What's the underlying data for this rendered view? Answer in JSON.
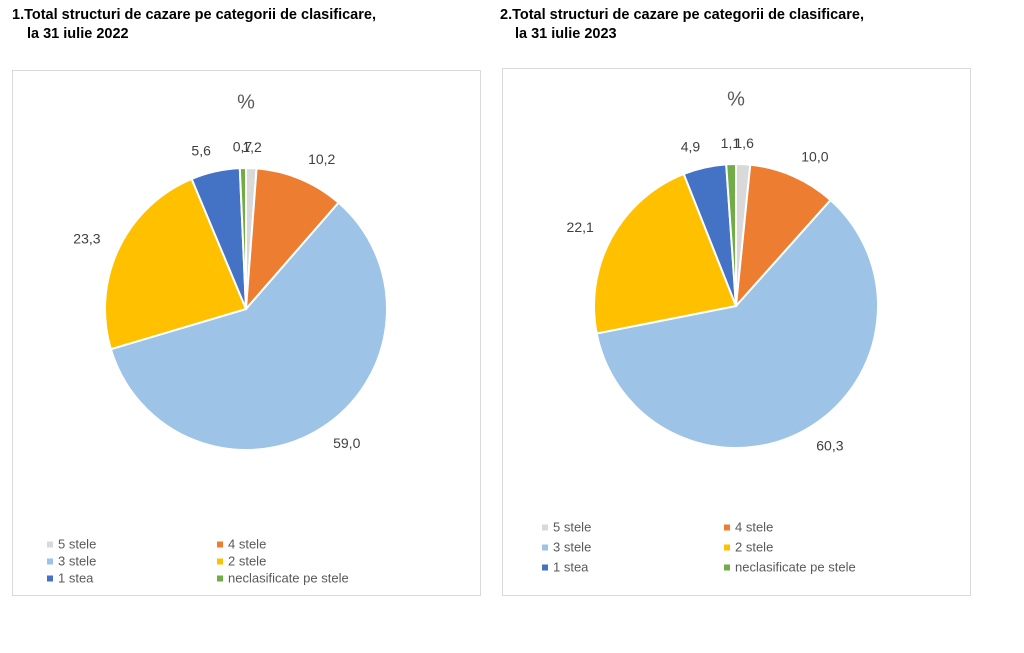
{
  "chart_data": [
    {
      "type": "pie",
      "title": "1.Total structuri de cazare pe categorii de clasificare,",
      "subtitle": "la 31 iulie 2022",
      "chart_title": "%",
      "categories": [
        "5 stele",
        "4 stele",
        "3 stele",
        "2 stele",
        "1 stea",
        "neclasificate pe stele"
      ],
      "values": [
        1.2,
        10.2,
        59.0,
        23.3,
        5.6,
        0.7
      ],
      "value_labels": [
        "1,2",
        "10,2",
        "59,0",
        "23,3",
        "5,6",
        "0,7"
      ],
      "colors": [
        "#d9d9d9",
        "#ed7d31",
        "#9dc3e6",
        "#ffc000",
        "#4472c4",
        "#70ad47"
      ]
    },
    {
      "type": "pie",
      "title": "2.Total structuri de cazare pe categorii de clasificare,",
      "subtitle": "la 31 iulie 2023",
      "chart_title": "%",
      "categories": [
        "5 stele",
        "4 stele",
        "3 stele",
        "2 stele",
        "1 stea",
        "neclasificate pe stele"
      ],
      "values": [
        1.6,
        10.0,
        60.3,
        22.1,
        4.9,
        1.1
      ],
      "value_labels": [
        "1,6",
        "10,0",
        "60,3",
        "22,1",
        "4,9",
        "1,1"
      ],
      "colors": [
        "#d9d9d9",
        "#ed7d31",
        "#9dc3e6",
        "#ffc000",
        "#4472c4",
        "#70ad47"
      ]
    }
  ]
}
